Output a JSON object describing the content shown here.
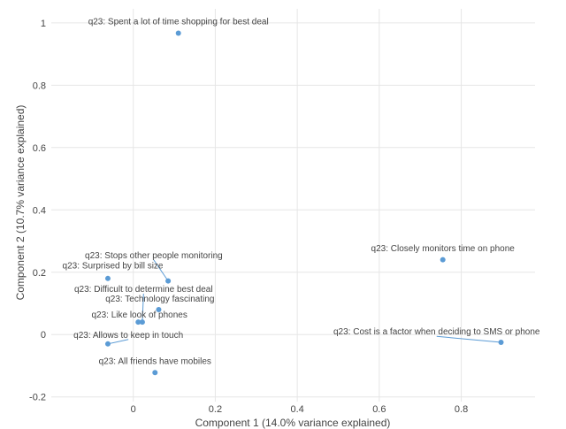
{
  "chart_data": {
    "type": "scatter",
    "xlabel": "Component 1 (14.0% variance explained)",
    "ylabel": "Component 2 (10.7% variance explained)",
    "xlim": [
      -0.2,
      0.98
    ],
    "ylim": [
      -0.215,
      1.045
    ],
    "x_ticks": [
      0,
      0.2,
      0.4,
      0.6,
      0.8
    ],
    "x_tick_labels": [
      "0",
      "0.2",
      "0.4",
      "0.6",
      "0.8"
    ],
    "y_ticks": [
      -0.2,
      0,
      0.2,
      0.4,
      0.6,
      0.8,
      1
    ],
    "y_tick_labels": [
      "-0.2",
      "0",
      "0.2",
      "0.4",
      "0.6",
      "0.8",
      "1"
    ],
    "grid": true,
    "point_color": "#5b9bd5",
    "points": [
      {
        "label": "q23: Spent a lot of time shopping for best deal",
        "x": 0.11,
        "y": 0.967,
        "lx": 0.11,
        "ly": 0.995,
        "anchor": "middle"
      },
      {
        "label": "q23: Closely monitors time on phone",
        "x": 0.755,
        "y": 0.24,
        "lx": 0.755,
        "ly": 0.268,
        "anchor": "middle"
      },
      {
        "label": "q23: Stops other people monitoring",
        "x": 0.085,
        "y": 0.172,
        "lx": 0.05,
        "ly": 0.245,
        "anchor": "middle"
      },
      {
        "label": "q23: Surprised by bill size",
        "x": -0.062,
        "y": 0.18,
        "lx": -0.05,
        "ly": 0.212,
        "anchor": "middle"
      },
      {
        "label": "q23: Difficult to determine best deal",
        "x": 0.022,
        "y": 0.04,
        "lx": 0.025,
        "ly": 0.137,
        "anchor": "middle"
      },
      {
        "label": "q23: Technology fascinating",
        "x": 0.062,
        "y": 0.08,
        "lx": 0.065,
        "ly": 0.105,
        "anchor": "middle"
      },
      {
        "label": "q23: Like look of phones",
        "x": 0.012,
        "y": 0.04,
        "lx": 0.015,
        "ly": 0.055,
        "anchor": "middle"
      },
      {
        "label": "q23: Allows to keep in touch",
        "x": -0.062,
        "y": -0.03,
        "lx": -0.012,
        "ly": -0.01,
        "anchor": "middle"
      },
      {
        "label": "q23: Cost is a factor when deciding to SMS or phone",
        "x": 0.897,
        "y": -0.025,
        "lx": 0.74,
        "ly": 0.0,
        "anchor": "middle"
      },
      {
        "label": "q23: All friends have mobiles",
        "x": 0.053,
        "y": -0.122,
        "lx": 0.053,
        "ly": -0.095,
        "anchor": "middle"
      }
    ]
  }
}
